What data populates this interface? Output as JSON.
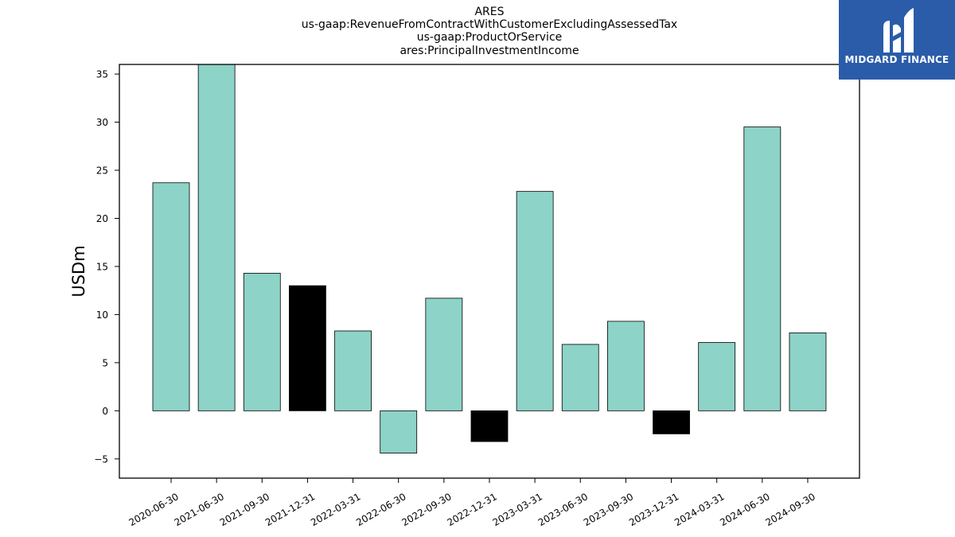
{
  "chart_data": {
    "type": "bar",
    "title_lines": [
      "ARES",
      "us-gaap:RevenueFromContractWithCustomerExcludingAssessedTax",
      "us-gaap:ProductOrService",
      "ares:PrincipalInvestmentIncome"
    ],
    "ylabel": "USDm",
    "xlabel": "",
    "ylim": [
      -7,
      36
    ],
    "yticks": [
      -5,
      0,
      5,
      10,
      15,
      20,
      25,
      30,
      35
    ],
    "ytick_labels": [
      "−5",
      "0",
      "5",
      "10",
      "15",
      "20",
      "25",
      "30",
      "35"
    ],
    "categories": [
      "2020-06-30",
      "2021-06-30",
      "2021-09-30",
      "2021-12-31",
      "2022-03-31",
      "2022-06-30",
      "2022-09-30",
      "2022-12-31",
      "2023-03-31",
      "2023-06-30",
      "2023-09-30",
      "2023-12-31",
      "2024-03-31",
      "2024-06-30",
      "2024-09-30"
    ],
    "values": [
      23.7,
      36.0,
      14.3,
      13.0,
      8.3,
      -4.4,
      11.7,
      -3.2,
      22.8,
      6.9,
      9.3,
      -2.4,
      7.1,
      29.5,
      8.1
    ],
    "colors": [
      "#8dd3c7",
      "#8dd3c7",
      "#8dd3c7",
      "#000000",
      "#8dd3c7",
      "#8dd3c7",
      "#8dd3c7",
      "#000000",
      "#8dd3c7",
      "#8dd3c7",
      "#8dd3c7",
      "#000000",
      "#8dd3c7",
      "#8dd3c7",
      "#8dd3c7"
    ],
    "grid": false,
    "legend": "none"
  },
  "logo": {
    "text": "MIDGARD FINANCE",
    "color": "#2a5caa"
  }
}
